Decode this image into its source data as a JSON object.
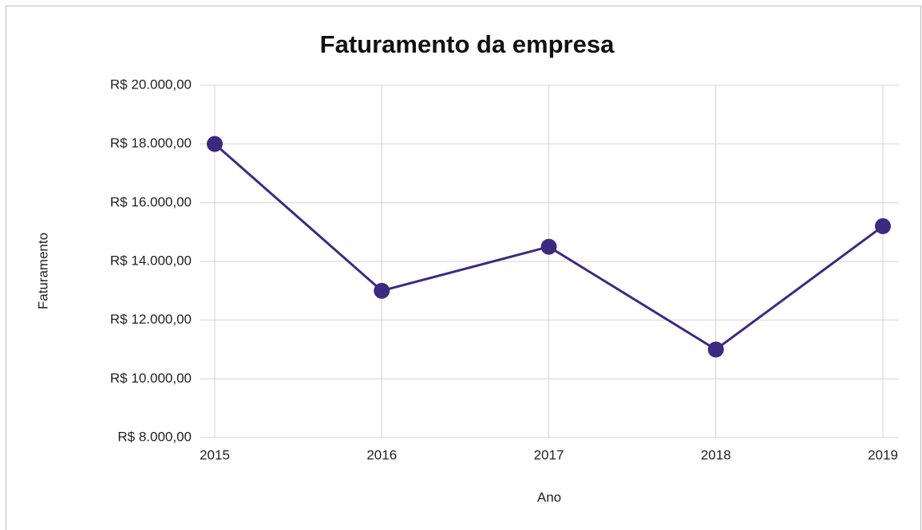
{
  "chart_data": {
    "type": "line",
    "title": "Faturamento da empresa",
    "x_label": "Ano",
    "y_label": "Faturamento",
    "x": [
      2015,
      2016,
      2017,
      2018,
      2019
    ],
    "series": [
      {
        "name": "Faturamento",
        "color": "#3d2a80",
        "values": [
          18000,
          13000,
          14500,
          11000,
          15200
        ]
      }
    ],
    "xlim": [
      2015,
      2019
    ],
    "xticks": [
      2015,
      2016,
      2017,
      2018,
      2019
    ],
    "ylim": [
      8000,
      20000
    ],
    "yticks": [
      {
        "value": 8000,
        "label": "R$ 8.000,00"
      },
      {
        "value": 10000,
        "label": "R$ 10.000,00"
      },
      {
        "value": 12000,
        "label": "R$ 12.000,00"
      },
      {
        "value": 14000,
        "label": "R$ 14.000,00"
      },
      {
        "value": 16000,
        "label": "R$ 16.000,00"
      },
      {
        "value": 18000,
        "label": "R$ 18.000,00"
      },
      {
        "value": 20000,
        "label": "R$ 20.000,00"
      }
    ],
    "grid": true
  }
}
